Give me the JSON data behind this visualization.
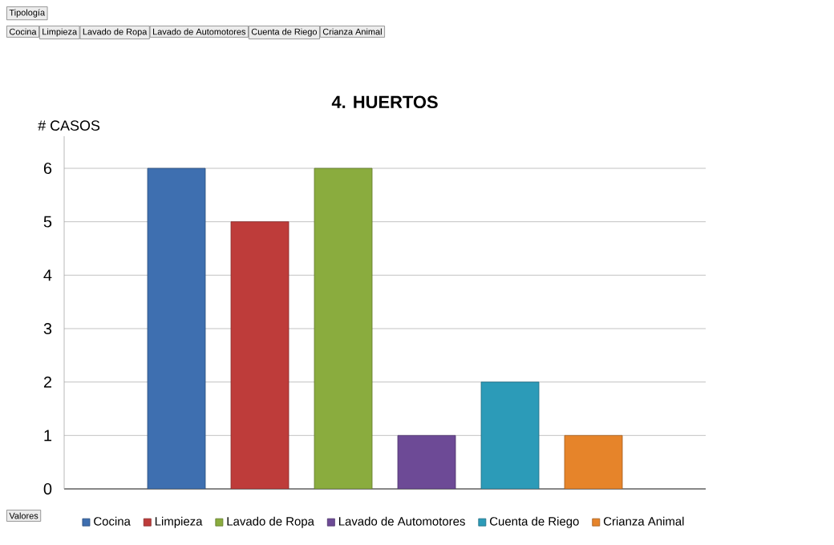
{
  "chart_data": {
    "type": "bar",
    "title": "4. HUERTOS",
    "ylabel": "# CASOS",
    "categories": [
      null
    ],
    "series": [
      {
        "name": "Cocina",
        "color": "#3e6fb0",
        "values": [
          6
        ]
      },
      {
        "name": "Limpieza",
        "color": "#be3c3a",
        "values": [
          5
        ]
      },
      {
        "name": "Lavado de Ropa",
        "color": "#8aac3e",
        "values": [
          6
        ]
      },
      {
        "name": "Lavado de Automotores",
        "color": "#6d4a96",
        "values": [
          1
        ]
      },
      {
        "name": "Cuenta de Riego",
        "color": "#2c9bb8",
        "values": [
          2
        ]
      },
      {
        "name": "Crianza Animal",
        "color": "#e6842a",
        "values": [
          1
        ]
      }
    ],
    "ylim": [
      0,
      6.6
    ],
    "yticks": [
      0,
      1,
      2,
      3,
      4,
      5,
      6
    ],
    "grid": "y",
    "legend": "bottom",
    "annotations": [
      "Tipología",
      "Cocina",
      "Limpieza",
      "Lavado de Ropa",
      "Lavado de Automotores",
      "Cuenta de Riego",
      "Crianza Animal",
      "Valores"
    ]
  }
}
